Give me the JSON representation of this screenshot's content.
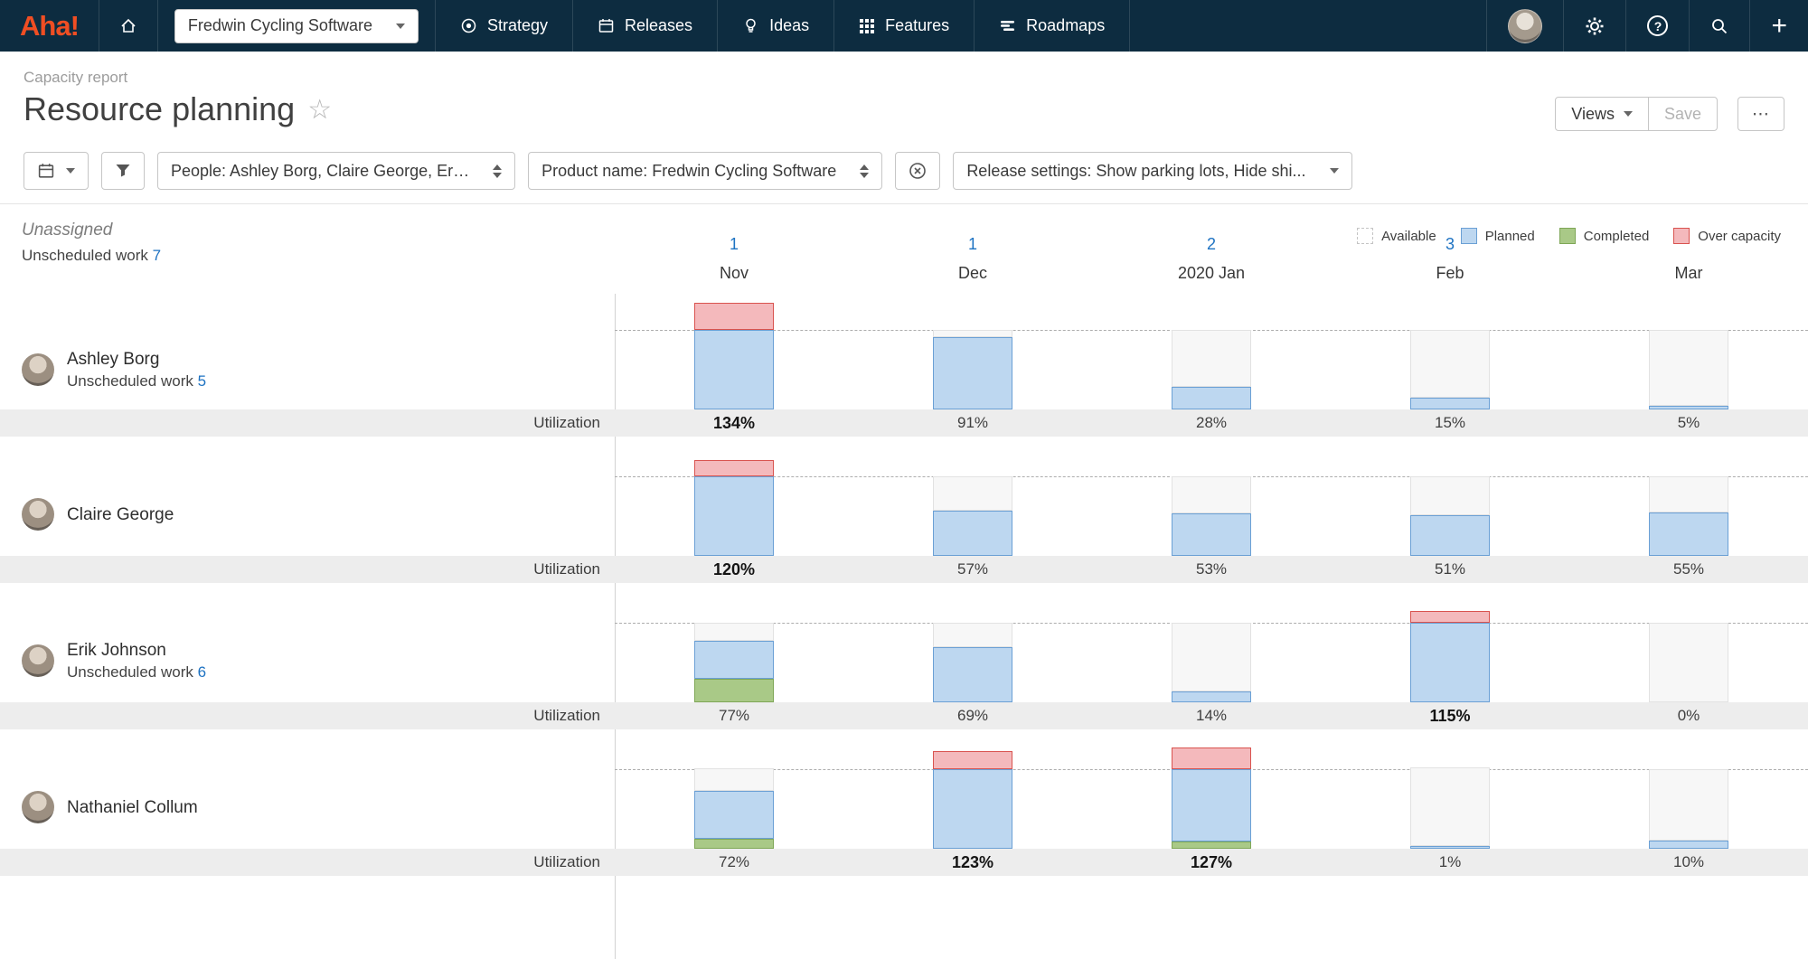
{
  "nav": {
    "logo": "Aha!",
    "product_selector": {
      "label": "Fredwin Cycling Software"
    },
    "items": [
      {
        "label": "Strategy"
      },
      {
        "label": "Releases"
      },
      {
        "label": "Ideas"
      },
      {
        "label": "Features"
      },
      {
        "label": "Roadmaps"
      }
    ]
  },
  "header": {
    "breadcrumb": "Capacity report",
    "title": "Resource planning",
    "actions": {
      "views": "Views",
      "save": "Save",
      "more": "⋯"
    }
  },
  "filterbar": {
    "people_filter": "People: Ashley Borg, Claire George, Er…",
    "product_filter": "Product name: Fredwin Cycling Software",
    "release_filter": "Release settings: Show parking lots, Hide shi..."
  },
  "legend": {
    "items": [
      {
        "label": "Available",
        "fill": "#ffffff",
        "border": "#c4c4c4",
        "style": "dashed"
      },
      {
        "label": "Planned",
        "fill": "#bdd7f0",
        "border": "#6ba0d5",
        "style": "solid"
      },
      {
        "label": "Completed",
        "fill": "#a9c987",
        "border": "#7fa757",
        "style": "solid"
      },
      {
        "label": "Over capacity",
        "fill": "#f4b9bc",
        "border": "#d9534f",
        "style": "solid"
      }
    ]
  },
  "chart_data": {
    "type": "bar",
    "unit": "percent utilization per month",
    "capacity_line": 100,
    "months": [
      "Nov",
      "Dec",
      "2020 Jan",
      "Feb",
      "Mar"
    ],
    "utilization_label": "Utilization",
    "rows": [
      {
        "name": "Ashley Borg",
        "unscheduled_label": "Unscheduled work",
        "unscheduled_count": "5",
        "utilization": [
          "134%",
          "91%",
          "28%",
          "15%",
          "5%"
        ],
        "emphasis": [
          true,
          false,
          false,
          false,
          false
        ],
        "bars": [
          {
            "completed": 0,
            "planned": 100,
            "over": 34
          },
          {
            "completed": 0,
            "planned": 91,
            "over": 0
          },
          {
            "completed": 0,
            "planned": 28,
            "over": 0
          },
          {
            "completed": 0,
            "planned": 15,
            "over": 0
          },
          {
            "completed": 0,
            "planned": 5,
            "over": 0
          }
        ]
      },
      {
        "name": "Claire George",
        "unscheduled_label": "",
        "unscheduled_count": "",
        "utilization": [
          "120%",
          "57%",
          "53%",
          "51%",
          "55%"
        ],
        "emphasis": [
          true,
          false,
          false,
          false,
          false
        ],
        "bars": [
          {
            "completed": 0,
            "planned": 100,
            "over": 20
          },
          {
            "completed": 0,
            "planned": 57,
            "over": 0
          },
          {
            "completed": 0,
            "planned": 53,
            "over": 0
          },
          {
            "completed": 0,
            "planned": 51,
            "over": 0
          },
          {
            "completed": 0,
            "planned": 55,
            "over": 0
          }
        ]
      },
      {
        "name": "Erik Johnson",
        "unscheduled_label": "Unscheduled work",
        "unscheduled_count": "6",
        "utilization": [
          "77%",
          "69%",
          "14%",
          "115%",
          "0%"
        ],
        "emphasis": [
          false,
          false,
          false,
          true,
          false
        ],
        "bars": [
          {
            "completed": 29,
            "planned": 48,
            "over": 0
          },
          {
            "completed": 0,
            "planned": 69,
            "over": 0
          },
          {
            "completed": 0,
            "planned": 14,
            "over": 0
          },
          {
            "completed": 0,
            "planned": 100,
            "over": 15
          },
          {
            "completed": 0,
            "planned": 0,
            "over": 0
          }
        ]
      },
      {
        "name": "Nathaniel Collum",
        "unscheduled_label": "",
        "unscheduled_count": "",
        "utilization": [
          "72%",
          "123%",
          "127%",
          "1%",
          "10%"
        ],
        "emphasis": [
          false,
          true,
          true,
          false,
          false
        ],
        "bars": [
          {
            "completed": 12,
            "planned": 60,
            "over": 0
          },
          {
            "completed": 0,
            "planned": 100,
            "over": 23
          },
          {
            "completed": 9,
            "planned": 91,
            "over": 27
          },
          {
            "completed": 0,
            "planned": 1,
            "over": 0
          },
          {
            "completed": 0,
            "planned": 10,
            "over": 0
          }
        ]
      }
    ],
    "unassigned": {
      "name": "Unassigned",
      "unscheduled_label": "Unscheduled work",
      "unscheduled_count": "7",
      "counts": [
        "1",
        "1",
        "2",
        "3",
        ""
      ]
    }
  },
  "colors": {
    "available_fill": "#f7f7f7",
    "available_border": "#e2e2e2",
    "planned_fill": "#bdd7f0",
    "planned_border": "#6ba0d5",
    "completed_fill": "#a9c987",
    "completed_border": "#7fa757",
    "over_fill": "#f4b9bc",
    "over_border": "#d9534f",
    "link": "#1d72c2",
    "nav_background": "#0d2c40",
    "logo_orange": "#f04e23"
  }
}
